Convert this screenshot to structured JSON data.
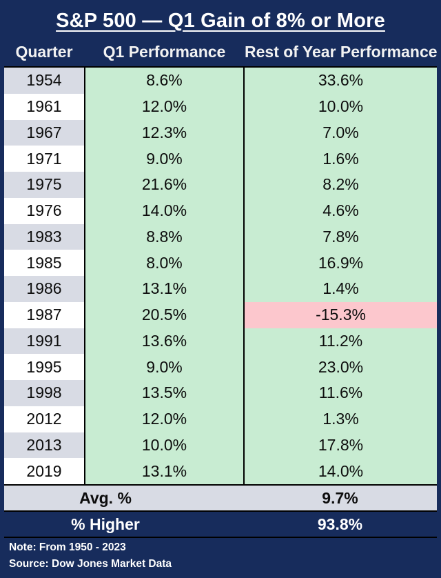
{
  "title": "S&P 500 — Q1 Gain of 8% or More",
  "columns": {
    "quarter": "Quarter",
    "q1": "Q1 Performance",
    "rest": "Rest of Year Performance"
  },
  "rows": [
    {
      "year": "1954",
      "q1": "8.6%",
      "rest": "33.6%",
      "rest_negative": false
    },
    {
      "year": "1961",
      "q1": "12.0%",
      "rest": "10.0%",
      "rest_negative": false
    },
    {
      "year": "1967",
      "q1": "12.3%",
      "rest": "7.0%",
      "rest_negative": false
    },
    {
      "year": "1971",
      "q1": "9.0%",
      "rest": "1.6%",
      "rest_negative": false
    },
    {
      "year": "1975",
      "q1": "21.6%",
      "rest": "8.2%",
      "rest_negative": false
    },
    {
      "year": "1976",
      "q1": "14.0%",
      "rest": "4.6%",
      "rest_negative": false
    },
    {
      "year": "1983",
      "q1": "8.8%",
      "rest": "7.8%",
      "rest_negative": false
    },
    {
      "year": "1985",
      "q1": "8.0%",
      "rest": "16.9%",
      "rest_negative": false
    },
    {
      "year": "1986",
      "q1": "13.1%",
      "rest": "1.4%",
      "rest_negative": false
    },
    {
      "year": "1987",
      "q1": "20.5%",
      "rest": "-15.3%",
      "rest_negative": true
    },
    {
      "year": "1991",
      "q1": "13.6%",
      "rest": "11.2%",
      "rest_negative": false
    },
    {
      "year": "1995",
      "q1": "9.0%",
      "rest": "23.0%",
      "rest_negative": false
    },
    {
      "year": "1998",
      "q1": "13.5%",
      "rest": "11.6%",
      "rest_negative": false
    },
    {
      "year": "2012",
      "q1": "12.0%",
      "rest": "1.3%",
      "rest_negative": false
    },
    {
      "year": "2013",
      "q1": "10.0%",
      "rest": "17.8%",
      "rest_negative": false
    },
    {
      "year": "2019",
      "q1": "13.1%",
      "rest": "14.0%",
      "rest_negative": false
    }
  ],
  "summary": {
    "avg_label": "Avg. %",
    "avg_value": "9.7%",
    "higher_label": "% Higher",
    "higher_value": "93.8%"
  },
  "footer": {
    "note": "Note: From 1950 - 2023",
    "source": "Source: Dow Jones Market Data"
  },
  "colors": {
    "navy": "#172C5C",
    "green": "#C8ECD2",
    "pink": "#FCC7CD",
    "gray": "#D8DBE4"
  },
  "chart_data": {
    "type": "table",
    "title": "S&P 500 — Q1 Gain of 8% or More",
    "columns": [
      "Quarter",
      "Q1 Performance",
      "Rest of Year Performance"
    ],
    "rows": [
      [
        1954,
        8.6,
        33.6
      ],
      [
        1961,
        12.0,
        10.0
      ],
      [
        1967,
        12.3,
        7.0
      ],
      [
        1971,
        9.0,
        1.6
      ],
      [
        1975,
        21.6,
        8.2
      ],
      [
        1976,
        14.0,
        4.6
      ],
      [
        1983,
        8.8,
        7.8
      ],
      [
        1985,
        8.0,
        16.9
      ],
      [
        1986,
        13.1,
        1.4
      ],
      [
        1987,
        20.5,
        -15.3
      ],
      [
        1991,
        13.6,
        11.2
      ],
      [
        1995,
        9.0,
        23.0
      ],
      [
        1998,
        13.5,
        11.6
      ],
      [
        2012,
        12.0,
        1.3
      ],
      [
        2013,
        10.0,
        17.8
      ],
      [
        2019,
        13.1,
        14.0
      ]
    ],
    "summary": {
      "avg_rest_of_year_pct": 9.7,
      "pct_higher": 93.8
    },
    "note": "From 1950 - 2023",
    "source": "Dow Jones Market Data",
    "highlight": "1987 rest-of-year value shaded pink (negative); all other performance cells shaded green"
  }
}
